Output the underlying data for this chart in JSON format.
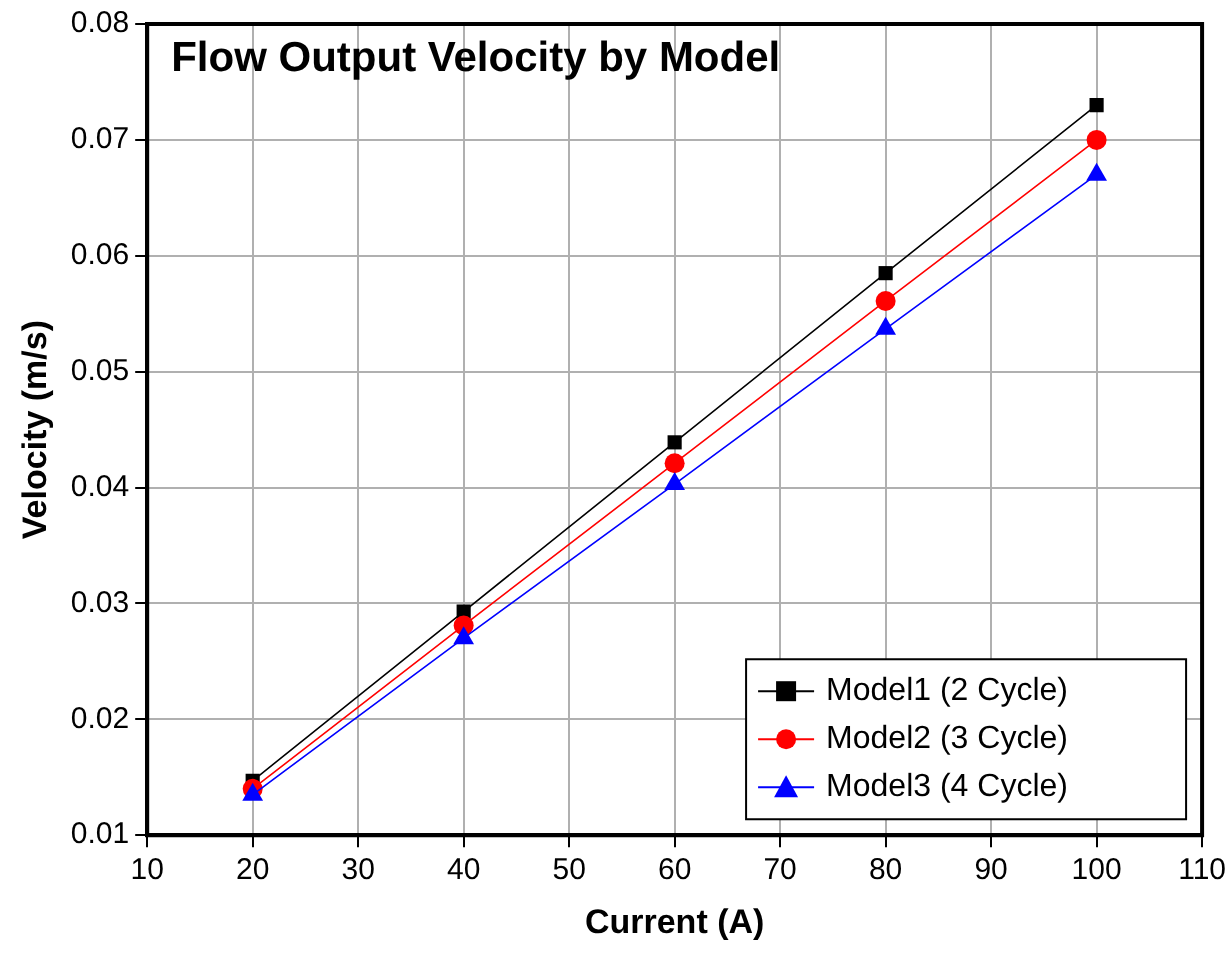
{
  "chart_data": {
    "type": "line",
    "title": "Flow Output Velocity by Model",
    "xlabel": "Current (A)",
    "ylabel": "Velocity (m/s)",
    "x": [
      20,
      40,
      60,
      80,
      100
    ],
    "series": [
      {
        "name": "Model1 (2 Cycle)",
        "color": "#000000",
        "marker": "square",
        "values": [
          0.0147,
          0.0293,
          0.0439,
          0.0585,
          0.073
        ]
      },
      {
        "name": "Model2 (3 Cycle)",
        "color": "#ff0000",
        "marker": "circle",
        "values": [
          0.014,
          0.0281,
          0.0421,
          0.0561,
          0.07
        ]
      },
      {
        "name": "Model3 (4 Cycle)",
        "color": "#0000ff",
        "marker": "triangle",
        "values": [
          0.0135,
          0.027,
          0.0403,
          0.0537,
          0.067
        ]
      }
    ],
    "xlim": [
      10,
      110
    ],
    "xticks": [
      10,
      20,
      30,
      40,
      50,
      60,
      70,
      80,
      90,
      100,
      110
    ],
    "ylim": [
      0.01,
      0.08
    ],
    "yticks": [
      0.01,
      0.02,
      0.03,
      0.04,
      0.05,
      0.06,
      0.07,
      0.08
    ],
    "grid": true,
    "legend": "bottom right",
    "line_style": "solid"
  }
}
